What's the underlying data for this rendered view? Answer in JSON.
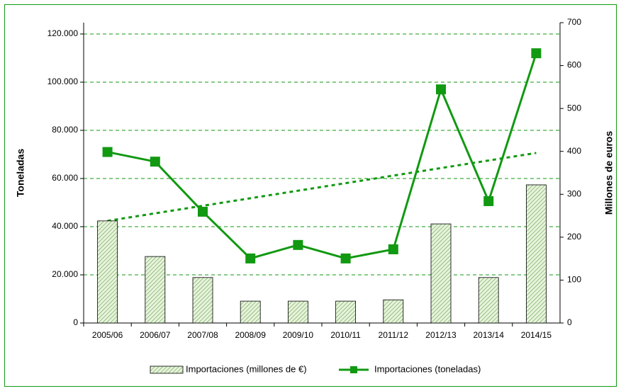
{
  "chart_data": {
    "type": "combo",
    "categories": [
      "2005/06",
      "2006/07",
      "2007/08",
      "2008/09",
      "2009/10",
      "2010/11",
      "2011/12",
      "2012/13",
      "2013/14",
      "2014/15"
    ],
    "series": [
      {
        "name": "Importaciones (millones de €)",
        "type": "bar",
        "axis": "y2",
        "color": "#d9edc9",
        "values": [
          238,
          155,
          106,
          51,
          51,
          51,
          54,
          231,
          106,
          322
        ]
      },
      {
        "name": "Importaciones (toneladas)",
        "type": "line",
        "axis": "y",
        "color": "#119911",
        "values": [
          71000,
          67000,
          46200,
          26800,
          32400,
          26800,
          30600,
          97000,
          50600,
          112000
        ]
      }
    ],
    "trendline": {
      "color": "#119911",
      "values": [
        42400,
        70600
      ]
    },
    "ylabel": "Toneladas",
    "y2label": "Millones de euros",
    "ylim": [
      0,
      124700
    ],
    "yticks": [
      0,
      {
        "value": 20000,
        "label": "20.000"
      },
      {
        "value": 40000,
        "label": "40.000"
      },
      {
        "value": 60000,
        "label": "60.000"
      },
      {
        "value": 80000,
        "label": "80.000"
      },
      {
        "value": 100000,
        "label": "100.000"
      },
      {
        "value": 120000,
        "label": "120.000"
      }
    ],
    "y2lim": [
      0,
      700
    ],
    "y2ticks": [
      0,
      100,
      200,
      300,
      400,
      500,
      600,
      700
    ],
    "grid": true,
    "legend": "bottom"
  }
}
